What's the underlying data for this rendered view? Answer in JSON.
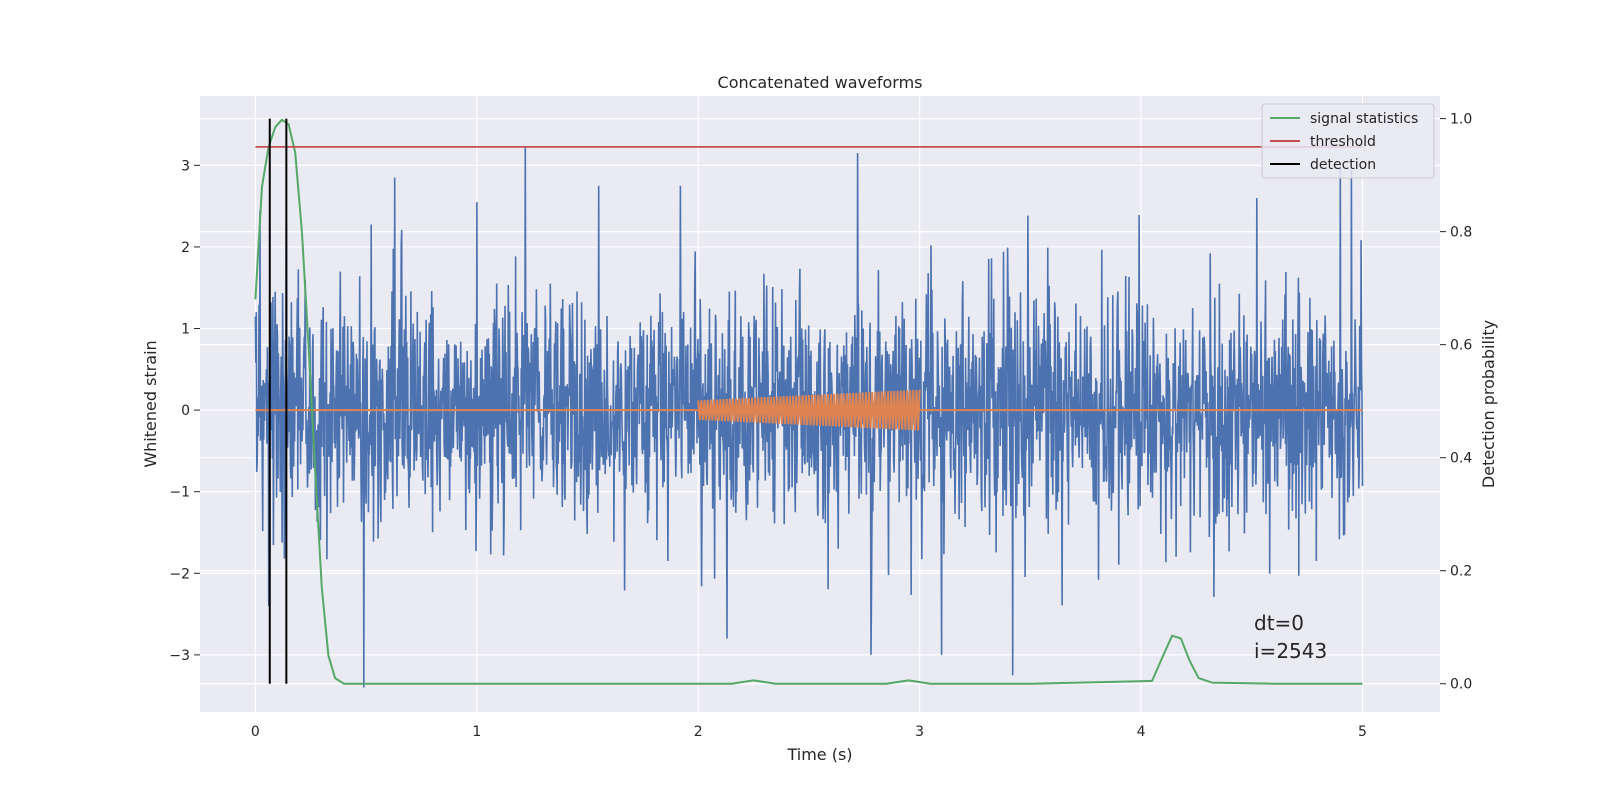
{
  "chart_data": {
    "type": "line",
    "title": "Concatenated waveforms",
    "xlabel": "Time (s)",
    "ylabel": "Whitened strain",
    "ylabel_right": "Detection probability",
    "xlim": [
      -0.25,
      5.35
    ],
    "ylim": [
      -3.7,
      3.85
    ],
    "ylim_right": [
      -0.05,
      1.04
    ],
    "xticks": [
      0,
      1,
      2,
      3,
      4,
      5
    ],
    "yticks": [
      -3,
      -2,
      -1,
      0,
      1,
      2,
      3
    ],
    "yticks_right": [
      0.0,
      0.2,
      0.4,
      0.6,
      0.8,
      1.0
    ],
    "xtick_labels": [
      "0",
      "1",
      "2",
      "3",
      "4",
      "5"
    ],
    "ytick_labels": [
      "−3",
      "−2",
      "−1",
      "0",
      "1",
      "2",
      "3"
    ],
    "ytick_labels_right": [
      "0.0",
      "0.2",
      "0.4",
      "0.6",
      "0.8",
      "1.0"
    ],
    "grid": true,
    "legend_position": "upper-right",
    "colors": {
      "background": "#eaeaf2",
      "grid": "#ffffff",
      "noise": "#4c72b0",
      "signal": "#dd8452",
      "statistics": "#55a868",
      "threshold": "#c44e52",
      "detection": "#000000"
    },
    "series": [
      {
        "name": "",
        "axis": "left",
        "kind": "noise",
        "x_range": [
          0,
          5
        ],
        "typical_range": [
          -1.2,
          1.1
        ],
        "peaks": [
          {
            "x": 0.02,
            "y": 2.45
          },
          {
            "x": 0.06,
            "y": -2.4
          },
          {
            "x": 0.14,
            "y": 2.3
          },
          {
            "x": 0.49,
            "y": -3.4
          },
          {
            "x": 0.63,
            "y": 2.85
          },
          {
            "x": 1.0,
            "y": 2.55
          },
          {
            "x": 1.22,
            "y": 3.22
          },
          {
            "x": 1.55,
            "y": 2.75
          },
          {
            "x": 1.92,
            "y": 2.75
          },
          {
            "x": 2.13,
            "y": -2.8
          },
          {
            "x": 2.72,
            "y": 3.15
          },
          {
            "x": 2.78,
            "y": -3.0
          },
          {
            "x": 3.1,
            "y": -3.0
          },
          {
            "x": 3.42,
            "y": -3.25
          },
          {
            "x": 4.9,
            "y": 3.0
          },
          {
            "x": 4.95,
            "y": 2.95
          }
        ]
      },
      {
        "name": "",
        "axis": "left",
        "kind": "chirp",
        "x_range": [
          0,
          5
        ],
        "chirp_x_range": [
          2.0,
          3.0
        ],
        "amplitude_start": 0.12,
        "amplitude_end": 0.25
      },
      {
        "name": "signal statistics",
        "axis": "right",
        "x": [
          0.0,
          0.03,
          0.06,
          0.09,
          0.12,
          0.15,
          0.18,
          0.21,
          0.24,
          0.27,
          0.3,
          0.33,
          0.36,
          0.4,
          0.5,
          0.6,
          1.0,
          2.0,
          2.15,
          2.25,
          2.35,
          2.5,
          2.85,
          2.95,
          3.05,
          3.5,
          4.05,
          4.1,
          4.14,
          4.18,
          4.22,
          4.26,
          4.32,
          4.6,
          5.0
        ],
        "values": [
          0.68,
          0.88,
          0.95,
          0.985,
          0.998,
          0.99,
          0.94,
          0.8,
          0.6,
          0.38,
          0.17,
          0.05,
          0.01,
          0.0,
          0.0,
          0.0,
          0.0,
          0.0,
          0.0,
          0.006,
          0.0,
          0.0,
          0.0,
          0.006,
          0.0,
          0.0,
          0.005,
          0.05,
          0.085,
          0.08,
          0.04,
          0.01,
          0.002,
          0.0,
          0.0
        ]
      },
      {
        "name": "threshold",
        "axis": "right",
        "x": [
          0,
          5
        ],
        "values": [
          0.95,
          0.95
        ]
      },
      {
        "name": "detection",
        "axis": "right",
        "kind": "vertical-lines",
        "x": [
          0.065,
          0.14
        ]
      }
    ],
    "annotations": [
      "dt=0",
      "i=2543"
    ]
  }
}
